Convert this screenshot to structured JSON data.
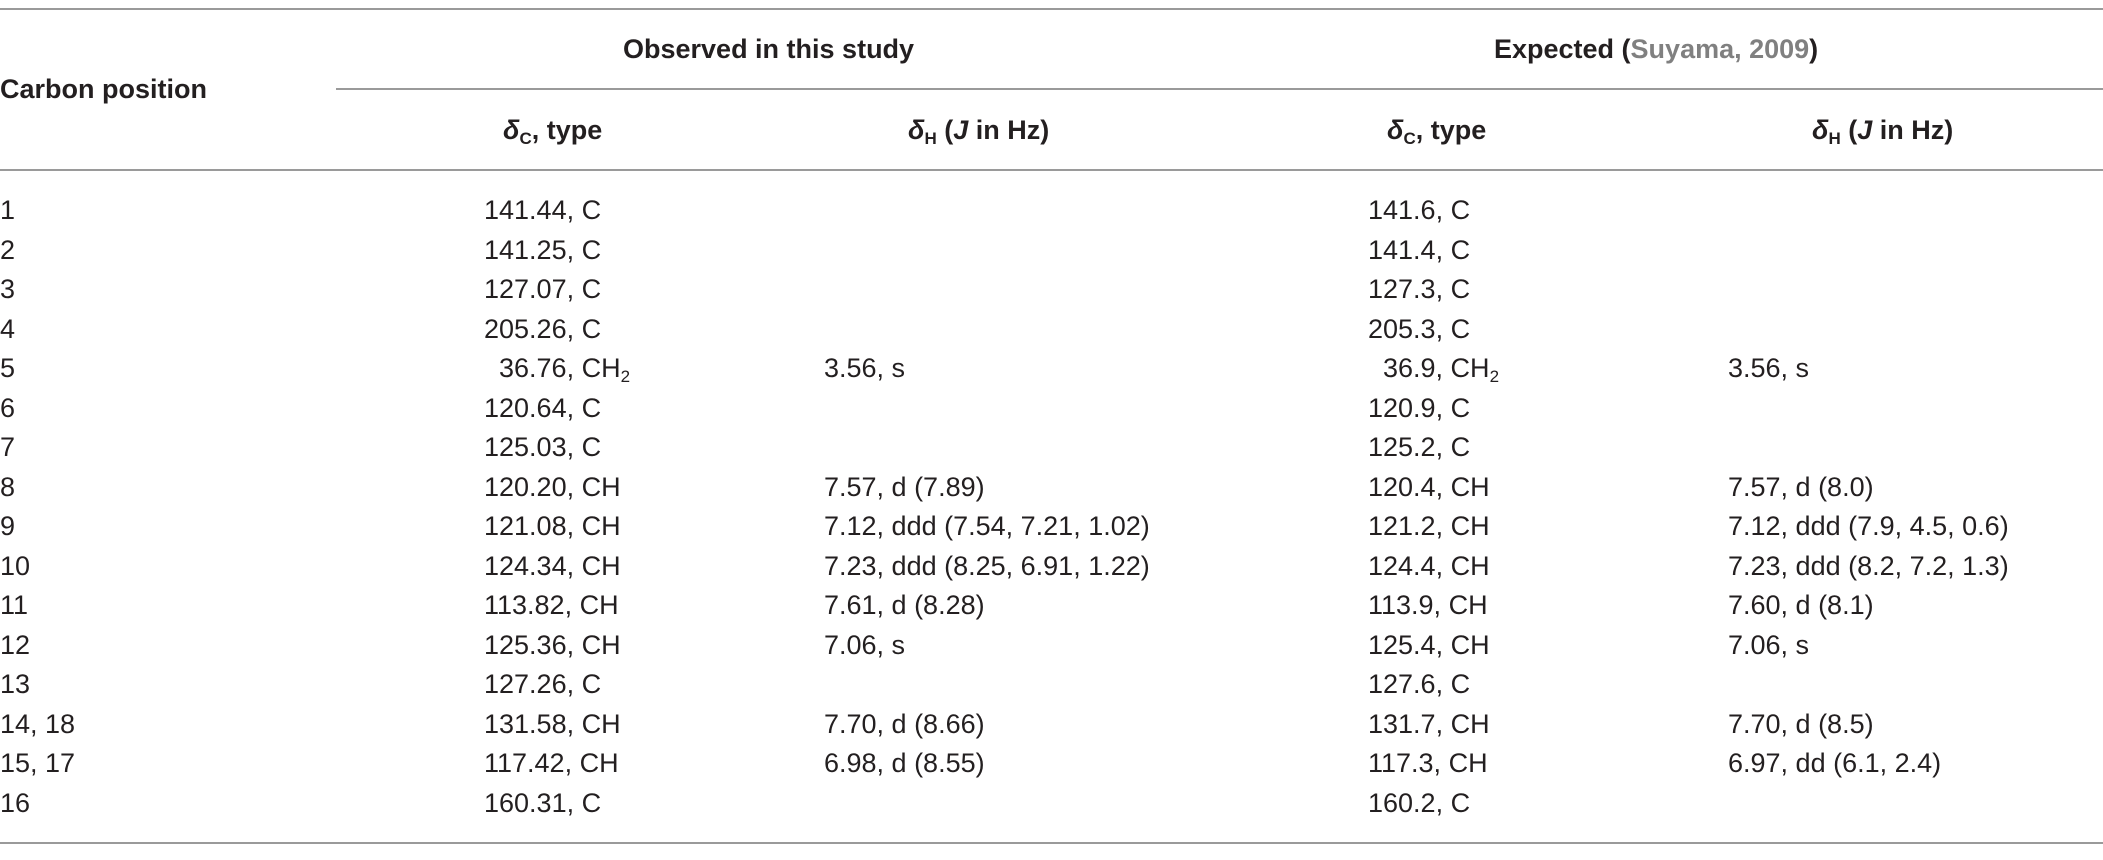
{
  "table": {
    "header": {
      "carbon_position": "Carbon position",
      "observed": "Observed in this study",
      "expected_prefix": "Expected (",
      "expected_ref": "Suyama, 2009",
      "expected_suffix": ")",
      "delta": "δ",
      "sub_c": "C",
      "sub_h": "H",
      "type_suffix": ", type",
      "j_open": " (",
      "j_label": "J",
      "j_close": " in Hz)"
    },
    "rows": [
      {
        "pos": "1",
        "obs_c": "141.44, C",
        "obs_c_sub": "",
        "obs_h": "",
        "exp_c": "141.6, C",
        "exp_c_sub": "",
        "exp_h": ""
      },
      {
        "pos": "2",
        "obs_c": "141.25, C",
        "obs_c_sub": "",
        "obs_h": "",
        "exp_c": "141.4, C",
        "exp_c_sub": "",
        "exp_h": ""
      },
      {
        "pos": "3",
        "obs_c": "127.07, C",
        "obs_c_sub": "",
        "obs_h": "",
        "exp_c": "127.3, C",
        "exp_c_sub": "",
        "exp_h": ""
      },
      {
        "pos": "4",
        "obs_c": "205.26, C",
        "obs_c_sub": "",
        "obs_h": "",
        "exp_c": "205.3, C",
        "exp_c_sub": "",
        "exp_h": ""
      },
      {
        "pos": "5",
        "obs_c": "  36.76, CH",
        "obs_c_sub": "2",
        "obs_h": "3.56, s",
        "exp_c": "  36.9, CH",
        "exp_c_sub": "2",
        "exp_h": "3.56, s"
      },
      {
        "pos": "6",
        "obs_c": "120.64, C",
        "obs_c_sub": "",
        "obs_h": "",
        "exp_c": "120.9, C",
        "exp_c_sub": "",
        "exp_h": ""
      },
      {
        "pos": "7",
        "obs_c": "125.03, C",
        "obs_c_sub": "",
        "obs_h": "",
        "exp_c": "125.2, C",
        "exp_c_sub": "",
        "exp_h": ""
      },
      {
        "pos": "8",
        "obs_c": "120.20, CH",
        "obs_c_sub": "",
        "obs_h": "7.57, d (7.89)",
        "exp_c": "120.4, CH",
        "exp_c_sub": "",
        "exp_h": "7.57, d (8.0)"
      },
      {
        "pos": "9",
        "obs_c": "121.08, CH",
        "obs_c_sub": "",
        "obs_h": "7.12, ddd (7.54, 7.21, 1.02)",
        "exp_c": "121.2, CH",
        "exp_c_sub": "",
        "exp_h": "7.12, ddd (7.9, 4.5, 0.6)"
      },
      {
        "pos": "10",
        "obs_c": "124.34, CH",
        "obs_c_sub": "",
        "obs_h": "7.23, ddd (8.25, 6.91, 1.22)",
        "exp_c": "124.4, CH",
        "exp_c_sub": "",
        "exp_h": "7.23, ddd (8.2, 7.2, 1.3)"
      },
      {
        "pos": "11",
        "obs_c": "113.82, CH",
        "obs_c_sub": "",
        "obs_h": "7.61, d (8.28)",
        "exp_c": "113.9, CH",
        "exp_c_sub": "",
        "exp_h": "7.60, d (8.1)"
      },
      {
        "pos": "12",
        "obs_c": "125.36, CH",
        "obs_c_sub": "",
        "obs_h": "7.06, s",
        "exp_c": "125.4, CH",
        "exp_c_sub": "",
        "exp_h": "7.06, s"
      },
      {
        "pos": "13",
        "obs_c": "127.26, C",
        "obs_c_sub": "",
        "obs_h": "",
        "exp_c": "127.6, C",
        "exp_c_sub": "",
        "exp_h": ""
      },
      {
        "pos": "14, 18",
        "obs_c": "131.58, CH",
        "obs_c_sub": "",
        "obs_h": "7.70, d (8.66)",
        "exp_c": "131.7, CH",
        "exp_c_sub": "",
        "exp_h": "7.70, d (8.5)"
      },
      {
        "pos": "15, 17",
        "obs_c": "117.42, CH",
        "obs_c_sub": "",
        "obs_h": "6.98, d (8.55)",
        "exp_c": "117.3, CH",
        "exp_c_sub": "",
        "exp_h": "6.97, dd (6.1, 2.4)"
      },
      {
        "pos": "16",
        "obs_c": "160.31, C",
        "obs_c_sub": "",
        "obs_h": "",
        "exp_c": "160.2, C",
        "exp_c_sub": "",
        "exp_h": ""
      }
    ]
  }
}
